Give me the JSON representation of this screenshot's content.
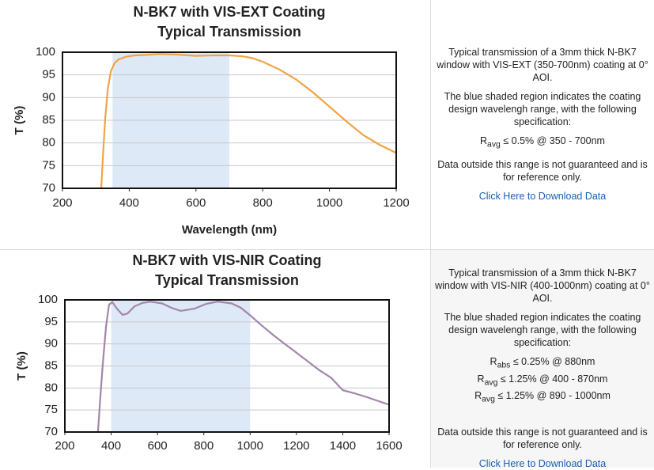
{
  "chart_data": [
    {
      "type": "line",
      "title": "N-BK7 with VIS-EXT Coating",
      "subtitle": "Typical Transmission",
      "xlabel": "Wavelength (nm)",
      "ylabel": "T (%)",
      "xlim": [
        200,
        1200
      ],
      "xticks": [
        200,
        400,
        600,
        800,
        1000,
        1200
      ],
      "ylim": [
        70,
        100
      ],
      "yticks": [
        70,
        75,
        80,
        85,
        90,
        95,
        100
      ],
      "grid": true,
      "shaded_range": [
        350,
        700
      ],
      "shade_color": "#dde9f6",
      "color": "#f0a444",
      "x": [
        316,
        322,
        328,
        336,
        345,
        356,
        368,
        390,
        416,
        450,
        490,
        540,
        600,
        650,
        700,
        740,
        770,
        800,
        850,
        900,
        950,
        1000,
        1050,
        1100,
        1150,
        1200
      ],
      "values": [
        70,
        78,
        85.3,
        92,
        95.8,
        97.6,
        98.4,
        99,
        99.3,
        99.4,
        99.6,
        99.5,
        99.2,
        99.3,
        99.3,
        99.1,
        98.7,
        97.9,
        96.2,
        94,
        91.2,
        88,
        84.8,
        81.8,
        79.6,
        77.8
      ]
    },
    {
      "type": "line",
      "title": "N-BK7 with VIS-NIR Coating",
      "subtitle": "Typical Transmission",
      "xlabel": "Wavelength (nm)",
      "ylabel": "T (%)",
      "xlim": [
        200,
        1600
      ],
      "xticks": [
        200,
        400,
        600,
        800,
        1000,
        1200,
        1400,
        1600
      ],
      "ylim": [
        70,
        100
      ],
      "yticks": [
        70,
        75,
        80,
        85,
        90,
        95,
        100
      ],
      "grid": true,
      "shaded_range": [
        400,
        1000
      ],
      "shade_color": "#dde9f6",
      "color": "#a386ab",
      "x": [
        343,
        352,
        364,
        378,
        391,
        405,
        425,
        449,
        470,
        500,
        535,
        569,
        620,
        660,
        700,
        760,
        810,
        860,
        920,
        960,
        1000,
        1050,
        1100,
        1150,
        1200,
        1250,
        1300,
        1350,
        1400,
        1450,
        1500,
        1550,
        1600
      ],
      "values": [
        70,
        77,
        85.5,
        94,
        98.9,
        99.5,
        98,
        96.6,
        96.9,
        98.5,
        99.3,
        99.6,
        99.2,
        98.2,
        97.5,
        98,
        99.1,
        99.6,
        99.2,
        98.2,
        96.5,
        94.2,
        92,
        90,
        88,
        86,
        84,
        82.3,
        79.5,
        78.8,
        78,
        77.1,
        76.2
      ]
    }
  ],
  "panels": [
    {
      "description": "Typical transmission of a 3mm thick N-BK7 window with VIS-EXT (350-700nm) coating at 0° AOI.",
      "shading_note": "The blue shaded region indicates the coating design wavelengh range, with the following specification:",
      "specs": [
        {
          "symbol": "R",
          "sub": "avg",
          "text": "≤ 0.5% @ 350 - 700nm"
        }
      ],
      "disclaimer": "Data outside this range is not guaranteed and is for reference only.",
      "link": "Click Here to Download Data"
    },
    {
      "description": "Typical transmission of a 3mm thick N-BK7 window with VIS-NIR (400-1000nm) coating at 0° AOI.",
      "shading_note": "The blue shaded region indicates the coating design wavelengh range, with the following specification:",
      "specs": [
        {
          "symbol": "R",
          "sub": "abs",
          "text": "≤ 0.25% @ 880nm"
        },
        {
          "symbol": "R",
          "sub": "avg",
          "text": "≤ 1.25% @ 400 - 870nm"
        },
        {
          "symbol": "R",
          "sub": "avg",
          "text": "≤ 1.25% @ 890 - 1000nm"
        }
      ],
      "disclaimer": "Data outside this range is not guaranteed and is for reference only.",
      "link": "Click Here to Download Data"
    }
  ]
}
